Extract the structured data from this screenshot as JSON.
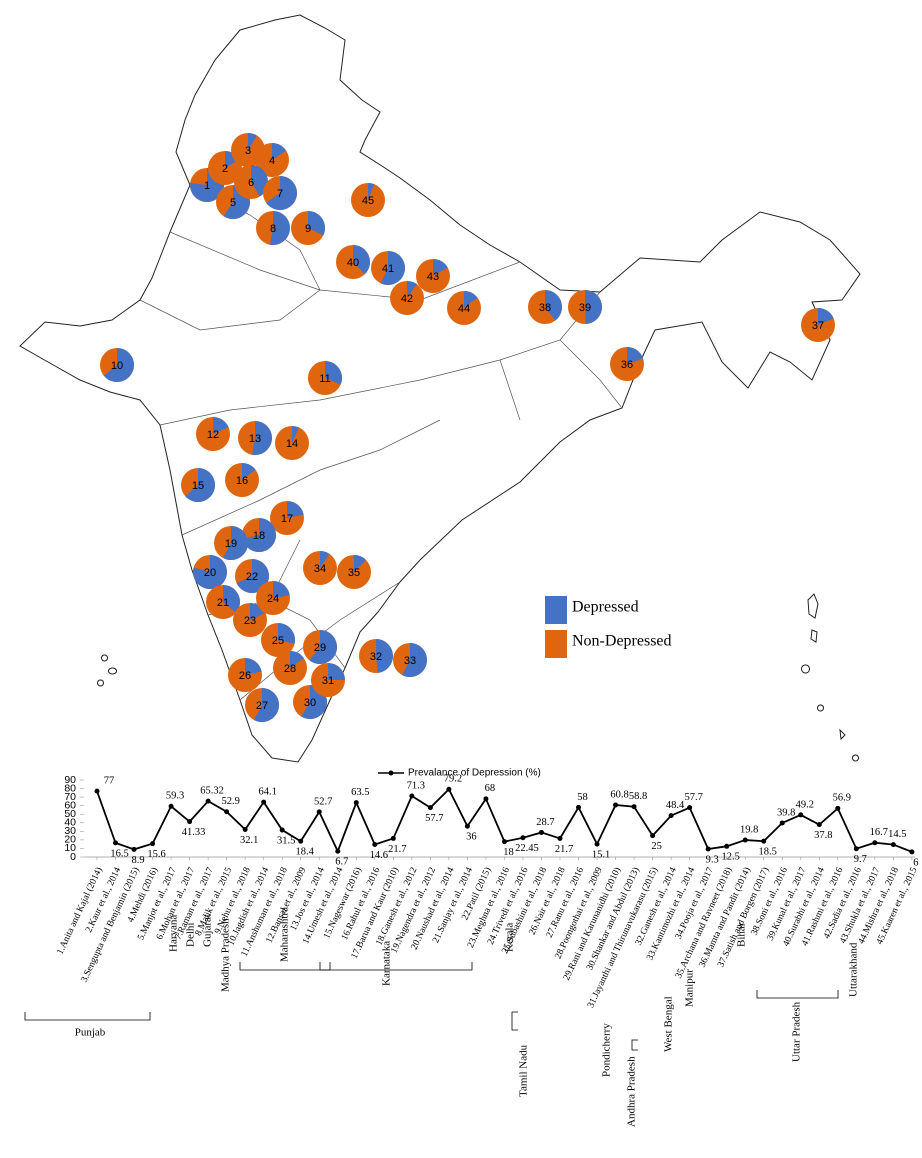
{
  "chart_data": [
    {
      "type": "pie-map",
      "categories": [
        "1",
        "2",
        "3",
        "4",
        "5",
        "6",
        "7",
        "8",
        "9",
        "10",
        "11",
        "12",
        "13",
        "14",
        "15",
        "16",
        "17",
        "18",
        "19",
        "20",
        "21",
        "22",
        "23",
        "24",
        "25",
        "26",
        "27",
        "28",
        "29",
        "30",
        "31",
        "32",
        "33",
        "34",
        "35",
        "36",
        "37",
        "38",
        "39",
        "40",
        "41",
        "42",
        "43",
        "44",
        "45"
      ],
      "series": [
        {
          "name": "Depressed",
          "color": "#4472c4"
        },
        {
          "name": "Non-Depressed",
          "color": "#e0650f"
        }
      ]
    },
    {
      "type": "line",
      "series": [
        {
          "name": "Prevalance of Depression (%)",
          "color": "#000000",
          "values": [
            77,
            16.5,
            8.9,
            15.6,
            59.3,
            41.33,
            65.32,
            52.9,
            32.1,
            64.1,
            31.5,
            18.4,
            52.7,
            6.7,
            63.5,
            14.6,
            21.7,
            71.3,
            57.7,
            79.2,
            36,
            68,
            18,
            22.45,
            28.7,
            21.7,
            58,
            15.1,
            60.8,
            58.8,
            25,
            48.4,
            57.7,
            9.3,
            12.5,
            19.8,
            18.5,
            39.8,
            49.2,
            37.8,
            56.9,
            9.7,
            16.7,
            14.5,
            6
          ]
        }
      ],
      "categories": [
        "1.Anita and Kajal (2014)",
        "2.Kaur et al., 2014",
        "3.Sengupta and Benjamin (2015)",
        "4.Mehdi (2016)",
        "5.Manjot et al., 2017",
        "6.Mohan et al., 2017",
        "7.Raman et al., 2017",
        "8.Malik et al., 2015",
        "9.Nehu et al., 2018",
        "10.Jagdish et al., 2014",
        "11.Anshuman et al., 2018",
        "12.Bansal et al., 2009",
        "13.Jos et al., 2014",
        "14.Umesh et al., 2014",
        "15.Nageswar (2016)",
        "16.Rahul et al., 2016",
        "17.Barua and Kaur (2010)",
        "18.Ganesh et al., 2012",
        "19.Nagendra et al., 2012",
        "20.Naushad et al., 2014",
        "21.Sanjay et al., 2014",
        "22.Patil (2015)",
        "23.Meghna et al., 2016",
        "24.Trivedi et al., 2016",
        "25.Subashini et al., 2018",
        "26.Nair et al., 2018",
        "27.Ranu et al., 2016",
        "28.Poongothai et al., 2009",
        "29.Rani and Karunanidhi (2010)",
        "30.Shankar and Abdul (2013)",
        "31.Jayanthi and Thirunavukarasu (2015)",
        "32.Ganesh et al., 2014",
        "33.Kantimozhi et al., 2014",
        "34.Pooja et al., 2017",
        "35.Archana and Ravneet (2018)",
        "36.Mamta and Pandit (2014)",
        "37.Satish and Borgen (2017)",
        "38.Soni et al., 2016",
        "39.Kunal et al., 2017",
        "40.Surabhi et al., 2014",
        "41.Rashmi et al., 2016",
        "42.Sadia et al., 2016",
        "43.Shukla et al., 2017",
        "44.Mishra et al., 2018",
        "45.Kaaren et al., 2015"
      ],
      "groups": [
        "Punjab",
        "Haryana",
        "Delhi",
        "Gujarat",
        "Madhya Pradesh",
        "Maharashtra",
        "Karnataka",
        "Kerala",
        "Tamil Nadu",
        "Pondicherry",
        "Andhra Pradesh",
        "West Bengal",
        "Manipur",
        "Bihar",
        "Uttar Pradesh",
        "Uttarakhand"
      ],
      "ylim": [
        0,
        90
      ],
      "yticks": [
        0,
        10,
        20,
        30,
        40,
        50,
        60,
        70,
        80,
        90
      ],
      "grid": false
    }
  ]
}
